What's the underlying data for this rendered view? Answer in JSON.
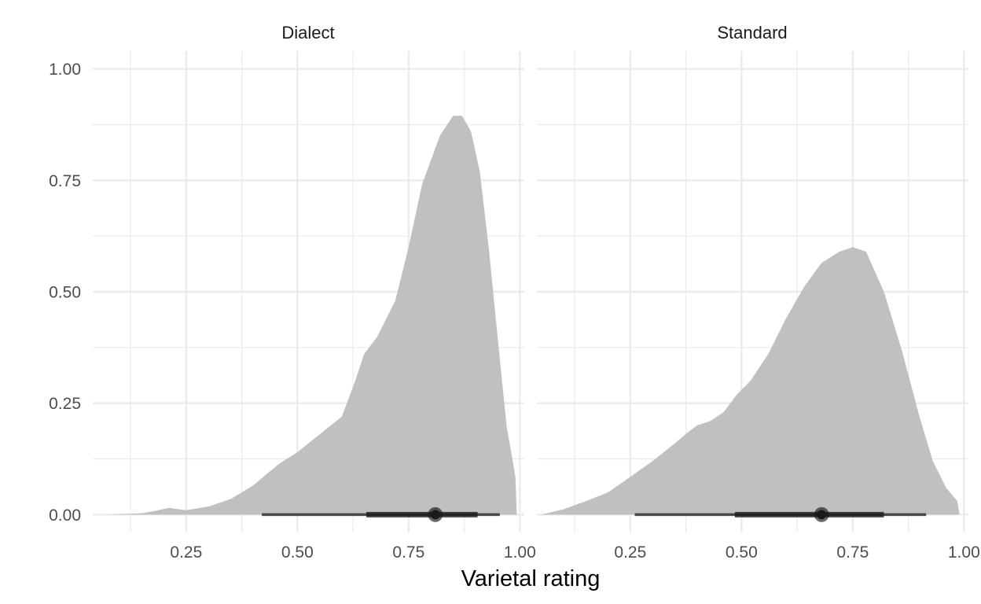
{
  "chart_data": [
    {
      "type": "area",
      "panel": "Dialect",
      "xlabel": "Varietal rating",
      "ylabel": "",
      "xlim": [
        0.04,
        1.01
      ],
      "ylim": [
        -0.04,
        1.04
      ],
      "x_ticks": [
        0.25,
        0.5,
        0.75,
        1.0
      ],
      "x_tick_labels": [
        "0.25",
        "0.50",
        "0.75",
        "1.00"
      ],
      "y_ticks": [
        0.0,
        0.25,
        0.5,
        0.75,
        1.0
      ],
      "y_tick_labels": [
        "0.00",
        "0.25",
        "0.50",
        "0.75",
        "1.00"
      ],
      "grid": true,
      "density": {
        "x": [
          0.08,
          0.15,
          0.18,
          0.21,
          0.25,
          0.3,
          0.35,
          0.4,
          0.43,
          0.46,
          0.5,
          0.55,
          0.6,
          0.63,
          0.65,
          0.68,
          0.72,
          0.75,
          0.78,
          0.82,
          0.85,
          0.87,
          0.89,
          0.91,
          0.93,
          0.95,
          0.97,
          0.99,
          0.993
        ],
        "y": [
          0.0,
          0.003,
          0.008,
          0.015,
          0.01,
          0.018,
          0.035,
          0.065,
          0.09,
          0.115,
          0.14,
          0.18,
          0.22,
          0.3,
          0.36,
          0.4,
          0.48,
          0.6,
          0.74,
          0.85,
          0.895,
          0.895,
          0.86,
          0.77,
          0.6,
          0.4,
          0.2,
          0.085,
          0.0
        ]
      },
      "point_interval": {
        "point": 0.81,
        "inner": [
          0.655,
          0.905
        ],
        "outer": [
          0.42,
          0.955
        ]
      }
    },
    {
      "type": "area",
      "panel": "Standard",
      "xlabel": "Varietal rating",
      "ylabel": "",
      "xlim": [
        0.04,
        1.01
      ],
      "ylim": [
        -0.04,
        1.04
      ],
      "x_ticks": [
        0.25,
        0.5,
        0.75,
        1.0
      ],
      "x_tick_labels": [
        "0.25",
        "0.50",
        "0.75",
        "1.00"
      ],
      "y_ticks": [
        0.0,
        0.25,
        0.5,
        0.75,
        1.0
      ],
      "y_tick_labels": [
        "0.00",
        "0.25",
        "0.50",
        "0.75",
        "1.00"
      ],
      "grid": true,
      "density": {
        "x": [
          0.05,
          0.1,
          0.15,
          0.2,
          0.25,
          0.3,
          0.35,
          0.38,
          0.4,
          0.43,
          0.46,
          0.49,
          0.52,
          0.56,
          0.6,
          0.64,
          0.68,
          0.72,
          0.75,
          0.78,
          0.82,
          0.86,
          0.9,
          0.93,
          0.96,
          0.985,
          0.99
        ],
        "y": [
          0.0,
          0.012,
          0.03,
          0.05,
          0.085,
          0.12,
          0.16,
          0.185,
          0.2,
          0.21,
          0.23,
          0.27,
          0.3,
          0.36,
          0.44,
          0.51,
          0.565,
          0.59,
          0.6,
          0.59,
          0.5,
          0.37,
          0.22,
          0.12,
          0.06,
          0.03,
          0.0
        ]
      },
      "point_interval": {
        "point": 0.68,
        "inner": [
          0.485,
          0.82
        ],
        "outer": [
          0.26,
          0.915
        ]
      }
    }
  ],
  "style": {
    "density_fill": "#bdbdbd",
    "grid_color": "#ebebeb",
    "interval_color": "#1a1a1a"
  }
}
